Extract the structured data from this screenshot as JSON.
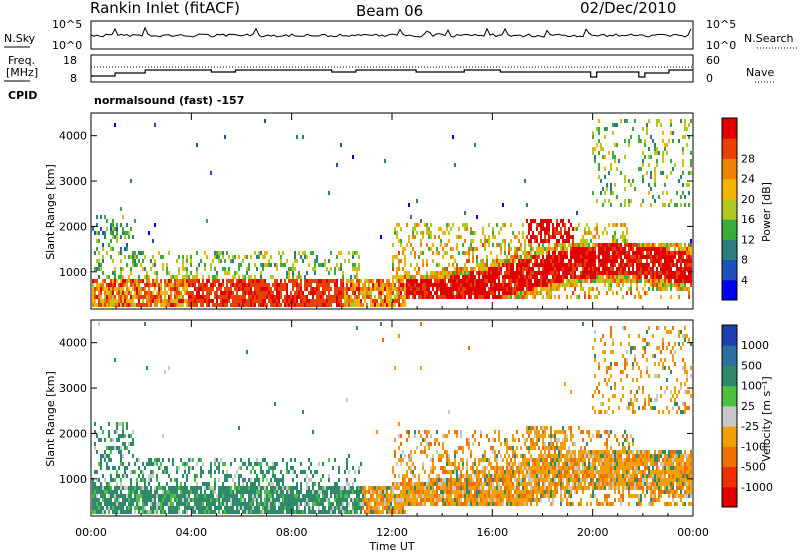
{
  "header": {
    "station": "Rankin Inlet (fitACF)",
    "beam": "Beam 06",
    "date": "02/Dec/2010"
  },
  "noise_panel": {
    "left_label": "N.Sky",
    "right_label": "N.Search",
    "left_ticks": [
      "10^5",
      "10^0"
    ],
    "right_ticks": [
      "10^5",
      "10^0"
    ]
  },
  "freq_panel": {
    "left_label_1": "Freq.",
    "left_label_2": "[MHz]",
    "right_label": "Nave",
    "left_ticks": [
      "18",
      "8"
    ],
    "right_ticks": [
      "60",
      "0"
    ],
    "cpid_label": "CPID",
    "cpid_text": "normalsound (fast) -157"
  },
  "chart_data": [
    {
      "type": "heatmap",
      "name": "power",
      "ylabel": "Slant Range [km]",
      "xlabel": "Time UT",
      "ylim": [
        180,
        4500
      ],
      "yticks": [
        "1000",
        "2000",
        "3000",
        "4000"
      ],
      "xticks": [
        "00:00",
        "04:00",
        "08:00",
        "12:00",
        "16:00",
        "20:00",
        "00:00"
      ],
      "colorbar_label": "Power [dB]",
      "colorbar_ticks": [
        "4",
        "8",
        "12",
        "16",
        "20",
        "24",
        "28"
      ],
      "colors": [
        "#0000ee",
        "#1f4fb8",
        "#2e7d7a",
        "#3cab3c",
        "#b0c820",
        "#f2b400",
        "#f08000",
        "#e84000",
        "#e00000"
      ]
    },
    {
      "type": "heatmap",
      "name": "velocity",
      "ylabel": "Slant Range [km]",
      "xlabel": "Time UT",
      "ylim": [
        180,
        4500
      ],
      "yticks": [
        "1000",
        "2000",
        "3000",
        "4000"
      ],
      "xticks": [
        "00:00",
        "04:00",
        "08:00",
        "12:00",
        "16:00",
        "20:00",
        "00:00"
      ],
      "colorbar_label": "Velocity [m s⁻¹]",
      "colorbar_ticks": [
        "1000",
        "500",
        "100",
        "25",
        "-25",
        "-100",
        "-500",
        "-1000"
      ],
      "colors": [
        "#1d3fb0",
        "#2f6fa0",
        "#2e8a6a",
        "#4cc040",
        "#c8c8c8",
        "#f0a000",
        "#f07000",
        "#ee3000",
        "#e00000"
      ]
    }
  ],
  "xaxis_title": "Time UT"
}
